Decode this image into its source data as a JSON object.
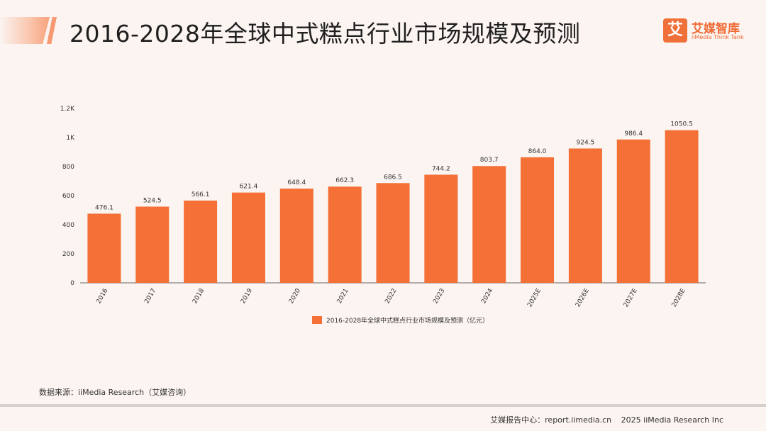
{
  "page": {
    "title": "2016-2028年全球中式糕点行业市场规模及预测",
    "logo_text": "艾媒智库",
    "logo_mark": "艾",
    "logo_en": "iiMedia Think Tank",
    "source": "数据来源：iiMedia Research（艾媒咨询）",
    "footer_center": "艾媒报告中心：report.iimedia.cn",
    "footer_copyright": "2025 iiMedia Research Inc"
  },
  "colors": {
    "bar": "#f47036",
    "accent": "#f06a33",
    "axis": "#666666"
  },
  "chart_data": {
    "type": "bar",
    "categories": [
      "2016",
      "2017",
      "2018",
      "2019",
      "2020",
      "2021",
      "2022",
      "2023",
      "2024",
      "2025E",
      "2026E",
      "2027E",
      "2028E"
    ],
    "series": [
      {
        "name": "2016-2028年全球中式糕点行业市场规模及预测（亿元）",
        "values": [
          476.1,
          524.5,
          566.1,
          621.4,
          648.4,
          662.3,
          686.5,
          744.2,
          803.7,
          864.0,
          924.5,
          986.4,
          1050.5
        ]
      }
    ],
    "y_ticks": [
      "0",
      "200",
      "400",
      "600",
      "800",
      "1K",
      "1.2K"
    ],
    "ylim": [
      0,
      1200
    ],
    "legend_position": "bottom-center",
    "grid": false
  }
}
